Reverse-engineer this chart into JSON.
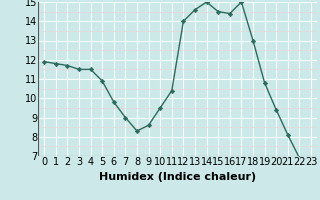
{
  "x": [
    0,
    1,
    2,
    3,
    4,
    5,
    6,
    7,
    8,
    9,
    10,
    11,
    12,
    13,
    14,
    15,
    16,
    17,
    18,
    19,
    20,
    21,
    22,
    23
  ],
  "y": [
    11.9,
    11.8,
    11.7,
    11.5,
    11.5,
    10.9,
    9.8,
    9.0,
    8.3,
    8.6,
    9.5,
    10.4,
    14.0,
    14.6,
    15.0,
    14.5,
    14.4,
    15.0,
    13.0,
    10.8,
    9.4,
    8.1,
    6.9,
    6.8
  ],
  "xlabel": "Humidex (Indice chaleur)",
  "ylim": [
    7,
    15
  ],
  "yticks": [
    7,
    8,
    9,
    10,
    11,
    12,
    13,
    14,
    15
  ],
  "xticks": [
    0,
    1,
    2,
    3,
    4,
    5,
    6,
    7,
    8,
    9,
    10,
    11,
    12,
    13,
    14,
    15,
    16,
    17,
    18,
    19,
    20,
    21,
    22,
    23
  ],
  "line_color": "#2d6b5e",
  "marker": "D",
  "marker_size": 2.2,
  "bg_color": "#cce8e8",
  "grid_color": "#ffffff",
  "grid_minor_color": "#e8d8d8",
  "xlabel_color": "#000000",
  "xlabel_fontsize": 8,
  "tick_fontsize": 7,
  "linewidth": 1.0
}
